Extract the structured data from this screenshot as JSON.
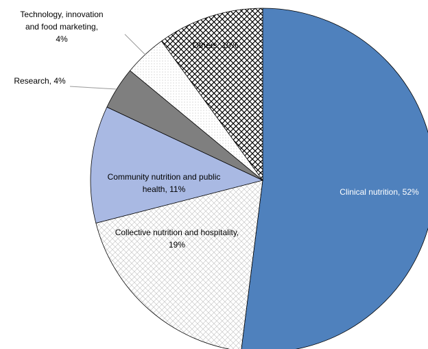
{
  "chart_data": {
    "type": "pie",
    "values": [
      52,
      19,
      11,
      4,
      4,
      10
    ],
    "value_labels": [
      "Clinical nutrition, 52%",
      "Collective nutrition and hospitality,\n19%",
      "Community nutrition and public\nhealth, 11%",
      "Research, 4%",
      "Technology, innovation\nand food marketing,\n4%",
      "Others, 10%"
    ],
    "colors": [
      "#4f81bd",
      "#c8c8c8",
      "#a9b9e3",
      "#7f7f7f",
      "#c0c0c0",
      "#000000"
    ],
    "patterns": [
      null,
      "crosshatch",
      null,
      null,
      "dots",
      "diamond"
    ]
  }
}
